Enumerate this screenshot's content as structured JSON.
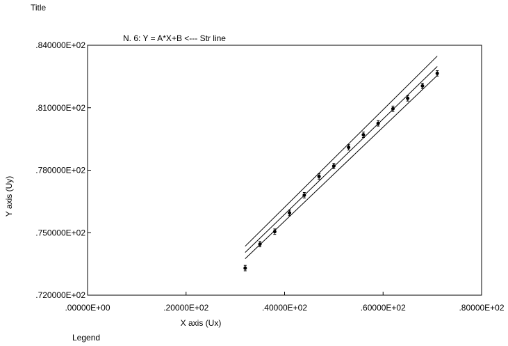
{
  "page": {
    "title": "Title",
    "legend_label": "Legend"
  },
  "chart_data": {
    "type": "line",
    "title": "N. 6:   Y = A*X+B <--- Str  line",
    "xlabel": "X axis (Ux)",
    "ylabel": "Y axis (Uy)",
    "xlim": [
      0,
      80
    ],
    "ylim": [
      72,
      84
    ],
    "x_ticks": [
      {
        "value": 0,
        "label": ".00000E+00"
      },
      {
        "value": 20,
        "label": ".20000E+02"
      },
      {
        "value": 40,
        "label": ".40000E+02"
      },
      {
        "value": 60,
        "label": ".60000E+02"
      },
      {
        "value": 80,
        "label": ".80000E+02"
      }
    ],
    "y_ticks": [
      {
        "value": 72,
        "label": ".720000E+02"
      },
      {
        "value": 75,
        "label": ".750000E+02"
      },
      {
        "value": 78,
        "label": ".780000E+02"
      },
      {
        "value": 81,
        "label": ".810000E+02"
      },
      {
        "value": 84,
        "label": ".840000E+02"
      }
    ],
    "grid": false,
    "points": {
      "x": [
        32,
        35,
        38,
        41,
        44,
        47,
        50,
        53,
        56,
        59,
        62,
        65,
        68,
        71
      ],
      "y": [
        73.3,
        74.45,
        75.05,
        75.95,
        76.8,
        77.7,
        78.2,
        79.1,
        79.7,
        80.25,
        80.95,
        81.45,
        82.05,
        82.65
      ],
      "err": [
        0.13,
        0.13,
        0.13,
        0.13,
        0.13,
        0.13,
        0.13,
        0.13,
        0.13,
        0.13,
        0.13,
        0.13,
        0.13,
        0.13
      ]
    },
    "series": [
      {
        "role": "fit",
        "x": [
          32,
          71
        ],
        "y": [
          74.05,
          82.98
        ]
      },
      {
        "role": "upper band",
        "x": [
          32,
          71
        ],
        "y": [
          74.35,
          83.48
        ]
      },
      {
        "role": "lower band",
        "x": [
          32,
          71
        ],
        "y": [
          73.75,
          82.55
        ]
      }
    ]
  }
}
